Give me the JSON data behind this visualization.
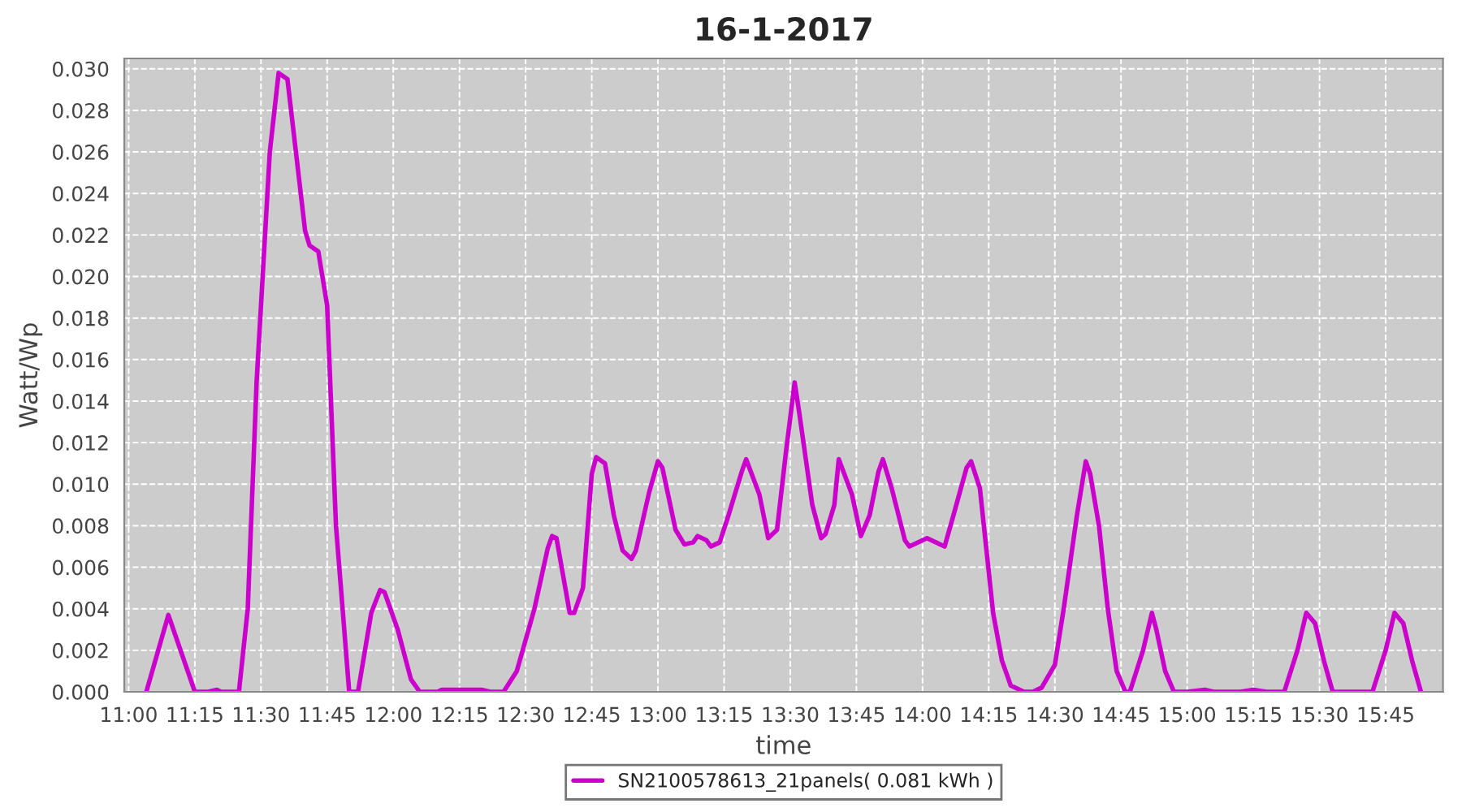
{
  "chart_data": {
    "type": "line",
    "title": "16-1-2017",
    "xlabel": "time",
    "ylabel": "Watt/Wp",
    "x": [
      "2017-01-16T11:04",
      "2017-01-16T11:09",
      "2017-01-16T11:15",
      "2017-01-16T11:18",
      "2017-01-16T11:20",
      "2017-01-16T11:21",
      "2017-01-16T11:25",
      "2017-01-16T11:27",
      "2017-01-16T11:29",
      "2017-01-16T11:32",
      "2017-01-16T11:34",
      "2017-01-16T11:36",
      "2017-01-16T11:40",
      "2017-01-16T11:41",
      "2017-01-16T11:43",
      "2017-01-16T11:45",
      "2017-01-16T11:47",
      "2017-01-16T11:50",
      "2017-01-16T11:52",
      "2017-01-16T11:55",
      "2017-01-16T11:57",
      "2017-01-16T11:58",
      "2017-01-16T12:01",
      "2017-01-16T12:04",
      "2017-01-16T12:06",
      "2017-01-16T12:10",
      "2017-01-16T12:11",
      "2017-01-16T12:20",
      "2017-01-16T12:22",
      "2017-01-16T12:25",
      "2017-01-16T12:28",
      "2017-01-16T12:32",
      "2017-01-16T12:35",
      "2017-01-16T12:36",
      "2017-01-16T12:37",
      "2017-01-16T12:40",
      "2017-01-16T12:41",
      "2017-01-16T12:43",
      "2017-01-16T12:45",
      "2017-01-16T12:46",
      "2017-01-16T12:48",
      "2017-01-16T12:50",
      "2017-01-16T12:52",
      "2017-01-16T12:54",
      "2017-01-16T12:55",
      "2017-01-16T12:58",
      "2017-01-16T13:00",
      "2017-01-16T13:01",
      "2017-01-16T13:04",
      "2017-01-16T13:06",
      "2017-01-16T13:08",
      "2017-01-16T13:09",
      "2017-01-16T13:11",
      "2017-01-16T13:12",
      "2017-01-16T13:14",
      "2017-01-16T13:16",
      "2017-01-16T13:19",
      "2017-01-16T13:20",
      "2017-01-16T13:23",
      "2017-01-16T13:25",
      "2017-01-16T13:27",
      "2017-01-16T13:29",
      "2017-01-16T13:31",
      "2017-01-16T13:32",
      "2017-01-16T13:35",
      "2017-01-16T13:37",
      "2017-01-16T13:38",
      "2017-01-16T13:40",
      "2017-01-16T13:41",
      "2017-01-16T13:44",
      "2017-01-16T13:46",
      "2017-01-16T13:48",
      "2017-01-16T13:50",
      "2017-01-16T13:51",
      "2017-01-16T13:53",
      "2017-01-16T13:56",
      "2017-01-16T13:57",
      "2017-01-16T14:01",
      "2017-01-16T14:05",
      "2017-01-16T14:07",
      "2017-01-16T14:10",
      "2017-01-16T14:11",
      "2017-01-16T14:13",
      "2017-01-16T14:16",
      "2017-01-16T14:18",
      "2017-01-16T14:20",
      "2017-01-16T14:23",
      "2017-01-16T14:25",
      "2017-01-16T14:27",
      "2017-01-16T14:30",
      "2017-01-16T14:32",
      "2017-01-16T14:35",
      "2017-01-16T14:37",
      "2017-01-16T14:38",
      "2017-01-16T14:40",
      "2017-01-16T14:42",
      "2017-01-16T14:44",
      "2017-01-16T14:46",
      "2017-01-16T14:47",
      "2017-01-16T14:50",
      "2017-01-16T14:52",
      "2017-01-16T14:53",
      "2017-01-16T14:55",
      "2017-01-16T14:57",
      "2017-01-16T15:00",
      "2017-01-16T15:04",
      "2017-01-16T15:06",
      "2017-01-16T15:12",
      "2017-01-16T15:15",
      "2017-01-16T15:18",
      "2017-01-16T15:22",
      "2017-01-16T15:25",
      "2017-01-16T15:27",
      "2017-01-16T15:29",
      "2017-01-16T15:31",
      "2017-01-16T15:33",
      "2017-01-16T15:42",
      "2017-01-16T15:45",
      "2017-01-16T15:47",
      "2017-01-16T15:49",
      "2017-01-16T15:51",
      "2017-01-16T15:53"
    ],
    "series": [
      {
        "name": "SN2100578613_21panels( 0.081 kWh )",
        "color": "#cc00cc",
        "values": [
          0,
          0.0037,
          0,
          0,
          0.0001,
          0,
          0,
          0.004,
          0.0149,
          0.026,
          0.0298,
          0.0295,
          0.0222,
          0.0215,
          0.0212,
          0.0186,
          0.008,
          0,
          0,
          0.0038,
          0.0049,
          0.0048,
          0.003,
          0.0006,
          0,
          0,
          0.0001,
          0.0001,
          0,
          0,
          0.001,
          0.004,
          0.0069,
          0.0075,
          0.0074,
          0.0038,
          0.0038,
          0.005,
          0.0105,
          0.0113,
          0.011,
          0.0085,
          0.0068,
          0.0064,
          0.0068,
          0.0096,
          0.0111,
          0.0108,
          0.0078,
          0.0071,
          0.0072,
          0.0075,
          0.0073,
          0.007,
          0.0072,
          0.0085,
          0.0106,
          0.0112,
          0.0095,
          0.0074,
          0.0078,
          0.0115,
          0.0149,
          0.0135,
          0.009,
          0.0074,
          0.0076,
          0.009,
          0.0112,
          0.0095,
          0.0075,
          0.0085,
          0.0106,
          0.0112,
          0.0098,
          0.0073,
          0.007,
          0.0074,
          0.007,
          0.0085,
          0.0108,
          0.0111,
          0.0098,
          0.0038,
          0.0015,
          0.0003,
          0,
          0,
          0.0002,
          0.0013,
          0.004,
          0.0085,
          0.0111,
          0.0105,
          0.008,
          0.004,
          0.001,
          0,
          0,
          0.002,
          0.0038,
          0.003,
          0.001,
          0,
          0,
          0.0001,
          0,
          0,
          0.0001,
          0,
          0,
          0.002,
          0.0038,
          0.0033,
          0.0015,
          0,
          0,
          0.002,
          0.0038,
          0.0033,
          0.0015,
          0
        ]
      }
    ],
    "xlim": [
      "2017-01-16T10:59",
      "2017-01-16T15:58"
    ],
    "xticks": [
      {
        "value": "2017-01-16T11:00",
        "label": "11:00"
      },
      {
        "value": "2017-01-16T11:15",
        "label": "11:15"
      },
      {
        "value": "2017-01-16T11:30",
        "label": "11:30"
      },
      {
        "value": "2017-01-16T11:45",
        "label": "11:45"
      },
      {
        "value": "2017-01-16T12:00",
        "label": "12:00"
      },
      {
        "value": "2017-01-16T12:15",
        "label": "12:15"
      },
      {
        "value": "2017-01-16T12:30",
        "label": "12:30"
      },
      {
        "value": "2017-01-16T12:45",
        "label": "12:45"
      },
      {
        "value": "2017-01-16T13:00",
        "label": "13:00"
      },
      {
        "value": "2017-01-16T13:15",
        "label": "13:15"
      },
      {
        "value": "2017-01-16T13:30",
        "label": "13:30"
      },
      {
        "value": "2017-01-16T13:45",
        "label": "13:45"
      },
      {
        "value": "2017-01-16T14:00",
        "label": "14:00"
      },
      {
        "value": "2017-01-16T14:15",
        "label": "14:15"
      },
      {
        "value": "2017-01-16T14:30",
        "label": "14:30"
      },
      {
        "value": "2017-01-16T14:45",
        "label": "14:45"
      },
      {
        "value": "2017-01-16T15:00",
        "label": "15:00"
      },
      {
        "value": "2017-01-16T15:15",
        "label": "15:15"
      },
      {
        "value": "2017-01-16T15:30",
        "label": "15:30"
      },
      {
        "value": "2017-01-16T15:45",
        "label": "15:45"
      }
    ],
    "ylim": [
      0,
      0.0305
    ],
    "yticks": [
      {
        "value": 0,
        "label": "0.000"
      },
      {
        "value": 0.002,
        "label": "0.002"
      },
      {
        "value": 0.004,
        "label": "0.004"
      },
      {
        "value": 0.006,
        "label": "0.006"
      },
      {
        "value": 0.008,
        "label": "0.008"
      },
      {
        "value": 0.01,
        "label": "0.010"
      },
      {
        "value": 0.012,
        "label": "0.012"
      },
      {
        "value": 0.014,
        "label": "0.014"
      },
      {
        "value": 0.016,
        "label": "0.016"
      },
      {
        "value": 0.018,
        "label": "0.018"
      },
      {
        "value": 0.02,
        "label": "0.020"
      },
      {
        "value": 0.022,
        "label": "0.022"
      },
      {
        "value": 0.024,
        "label": "0.024"
      },
      {
        "value": 0.026,
        "label": "0.026"
      },
      {
        "value": 0.028,
        "label": "0.028"
      },
      {
        "value": 0.03,
        "label": "0.030"
      }
    ],
    "grid": true,
    "legend": "bottom",
    "marker": "none",
    "line_style": "solid"
  }
}
